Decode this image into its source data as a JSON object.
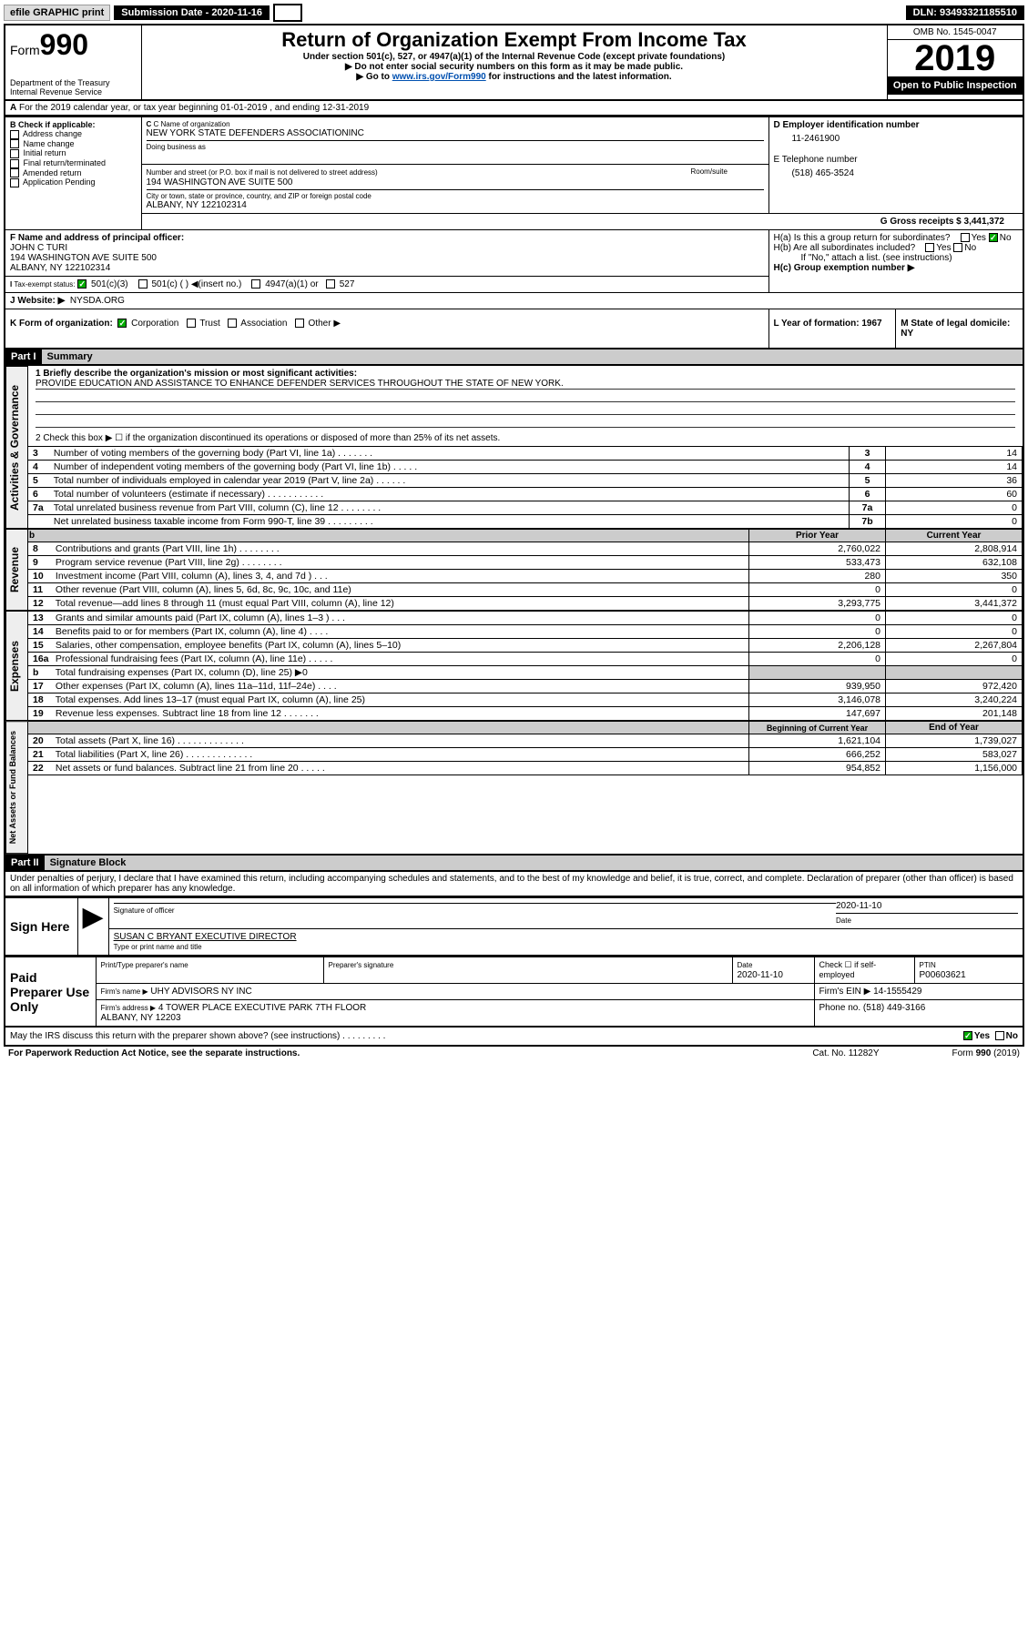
{
  "top": {
    "efile": "efile GRAPHIC print",
    "sub_date_label": "Submission Date - 2020-11-16",
    "dln": "DLN: 93493321185510"
  },
  "header": {
    "form_prefix": "Form",
    "form_number": "990",
    "dept": "Department of the Treasury Internal Revenue Service",
    "title": "Return of Organization Exempt From Income Tax",
    "subtitle": "Under section 501(c), 527, or 4947(a)(1) of the Internal Revenue Code (except private foundations)",
    "note1": "▶ Do not enter social security numbers on this form as it may be made public.",
    "note2_pre": "▶ Go to ",
    "note2_link": "www.irs.gov/Form990",
    "note2_post": " for instructions and the latest information.",
    "omb": "OMB No. 1545-0047",
    "year": "2019",
    "open": "Open to Public Inspection"
  },
  "a": {
    "line1": "For the 2019 calendar year, or tax year beginning 01-01-2019    , and ending 12-31-2019",
    "checks_label": "B Check if applicable:",
    "checks": [
      "Address change",
      "Name change",
      "Initial return",
      "Final return/terminated",
      "Amended return",
      "Application Pending"
    ],
    "c_name_label": "C Name of organization",
    "c_name": "NEW YORK STATE DEFENDERS ASSOCIATIONINC",
    "dba_label": "Doing business as",
    "addr_label": "Number and street (or P.O. box if mail is not delivered to street address)",
    "room_label": "Room/suite",
    "addr": "194 WASHINGTON AVE SUITE 500",
    "city_label": "City or town, state or province, country, and ZIP or foreign postal code",
    "city": "ALBANY, NY  122102314",
    "d_label": "D Employer identification number",
    "d_val": "11-2461900",
    "e_label": "E Telephone number",
    "e_val": "(518) 465-3524",
    "g_label": "G Gross receipts $ 3,441,372",
    "f_label": "F  Name and address of principal officer:",
    "f_name": "JOHN C TURI",
    "f_addr1": "194 WASHINGTON AVE SUITE 500",
    "f_addr2": "ALBANY, NY  122102314",
    "ha": "H(a)  Is this a group return for subordinates?",
    "hb": "H(b)  Are all subordinates included?",
    "hb_note": "If \"No,\" attach a list. (see instructions)",
    "hc": "H(c)  Group exemption number ▶",
    "yes": "Yes",
    "no": "No",
    "tax_label": "Tax-exempt status:",
    "tax_501c3": "501(c)(3)",
    "tax_501c": "501(c) (   ) ◀(insert no.)",
    "tax_4947": "4947(a)(1) or",
    "tax_527": "527",
    "j_label": "J Website: ▶",
    "j_val": "NYSDA.ORG",
    "k_label": "K Form of organization:",
    "k_opts": [
      "Corporation",
      "Trust",
      "Association",
      "Other ▶"
    ],
    "l_label": "L Year of formation: 1967",
    "m_label": "M State of legal domicile: NY"
  },
  "part1": {
    "header": "Part I",
    "sub": "Summary",
    "q1_label": "1  Briefly describe the organization's mission or most significant activities:",
    "q1_val": "PROVIDE EDUCATION AND ASSISTANCE TO ENHANCE DEFENDER SERVICES THROUGHOUT THE STATE OF NEW YORK.",
    "q2": "2  Check this box ▶ ☐  if the organization discontinued its operations or disposed of more than 25% of its net assets.",
    "rows_gov": [
      {
        "n": "3",
        "label": "Number of voting members of the governing body (Part VI, line 1a)   .    .    .    .    .    .    .",
        "box": "3",
        "val": "14"
      },
      {
        "n": "4",
        "label": "Number of independent voting members of the governing body (Part VI, line 1b)    .    .    .    .    .",
        "box": "4",
        "val": "14"
      },
      {
        "n": "5",
        "label": "Total number of individuals employed in calendar year 2019 (Part V, line 2a)    .    .    .    .    .    .",
        "box": "5",
        "val": "36"
      },
      {
        "n": "6",
        "label": "Total number of volunteers (estimate if necessary)    .    .    .    .    .    .    .    .    .    .    .",
        "box": "6",
        "val": "60"
      },
      {
        "n": "7a",
        "label": "Total unrelated business revenue from Part VIII, column (C), line 12    .    .    .    .    .    .    .    .",
        "box": "7a",
        "val": "0"
      },
      {
        "n": "",
        "label": "Net unrelated business taxable income from Form 990-T, line 39    .    .    .    .    .    .    .    .    .",
        "box": "7b",
        "val": "0"
      }
    ],
    "pyh": "Prior Year",
    "cyh": "Current Year",
    "rows_rev": [
      {
        "n": "8",
        "label": "Contributions and grants (Part VIII, line 1h)   .    .    .    .    .    .    .    .",
        "py": "2,760,022",
        "cy": "2,808,914"
      },
      {
        "n": "9",
        "label": "Program service revenue (Part VIII, line 2g)   .    .    .    .    .    .    .    .",
        "py": "533,473",
        "cy": "632,108"
      },
      {
        "n": "10",
        "label": "Investment income (Part VIII, column (A), lines 3, 4, and 7d )   .    .    .",
        "py": "280",
        "cy": "350"
      },
      {
        "n": "11",
        "label": "Other revenue (Part VIII, column (A), lines 5, 6d, 8c, 9c, 10c, and 11e)",
        "py": "0",
        "cy": "0"
      },
      {
        "n": "12",
        "label": "Total revenue—add lines 8 through 11 (must equal Part VIII, column (A), line 12)",
        "py": "3,293,775",
        "cy": "3,441,372"
      }
    ],
    "rows_exp": [
      {
        "n": "13",
        "label": "Grants and similar amounts paid (Part IX, column (A), lines 1–3 )   .    .    .",
        "py": "0",
        "cy": "0"
      },
      {
        "n": "14",
        "label": "Benefits paid to or for members (Part IX, column (A), line 4)   .    .    .    .",
        "py": "0",
        "cy": "0"
      },
      {
        "n": "15",
        "label": "Salaries, other compensation, employee benefits (Part IX, column (A), lines 5–10)",
        "py": "2,206,128",
        "cy": "2,267,804"
      },
      {
        "n": "16a",
        "label": "Professional fundraising fees (Part IX, column (A), line 11e)   .    .    .    .    .",
        "py": "0",
        "cy": "0"
      },
      {
        "n": "b",
        "label": "Total fundraising expenses (Part IX, column (D), line 25) ▶0",
        "py": "",
        "cy": ""
      },
      {
        "n": "17",
        "label": "Other expenses (Part IX, column (A), lines 11a–11d, 11f–24e)   .    .    .    .",
        "py": "939,950",
        "cy": "972,420"
      },
      {
        "n": "18",
        "label": "Total expenses. Add lines 13–17 (must equal Part IX, column (A), line 25)",
        "py": "3,146,078",
        "cy": "3,240,224"
      },
      {
        "n": "19",
        "label": "Revenue less expenses. Subtract line 18 from line 12   .    .    .    .    .    .    .",
        "py": "147,697",
        "cy": "201,148"
      }
    ],
    "bcy": "Beginning of Current Year",
    "eoy": "End of Year",
    "rows_net": [
      {
        "n": "20",
        "label": "Total assets (Part X, line 16)   .    .    .    .    .    .    .    .    .    .    .    .    .",
        "py": "1,621,104",
        "cy": "1,739,027"
      },
      {
        "n": "21",
        "label": "Total liabilities (Part X, line 26)   .    .    .    .    .    .    .    .    .    .    .    .    .",
        "py": "666,252",
        "cy": "583,027"
      },
      {
        "n": "22",
        "label": "Net assets or fund balances. Subtract line 21 from line 20   .    .    .    .    .",
        "py": "954,852",
        "cy": "1,156,000"
      }
    ]
  },
  "part2": {
    "header": "Part II",
    "sub": "Signature Block",
    "decl": "Under penalties of perjury, I declare that I have examined this return, including accompanying schedules and statements, and to the best of my knowledge and belief, it is true, correct, and complete. Declaration of preparer (other than officer) is based on all information of which preparer has any knowledge.",
    "sign_here": "Sign Here",
    "sig_officer": "Signature of officer",
    "sig_date": "2020-11-10",
    "sig_date_label": "Date",
    "officer_name": "SUSAN C BRYANT  EXECUTIVE DIRECTOR",
    "type_label": "Type or print name and title",
    "paid": "Paid Preparer Use Only",
    "prep_name_label": "Print/Type preparer's name",
    "prep_sig_label": "Preparer's signature",
    "prep_date_label": "Date",
    "prep_date": "2020-11-10",
    "check_if": "Check ☐ if self-employed",
    "ptin_label": "PTIN",
    "ptin": "P00603621",
    "firm_name_label": "Firm's name      ▶",
    "firm_name": "UHY ADVISORS NY INC",
    "firm_ein": "Firm's EIN ▶ 14-1555429",
    "firm_addr_label": "Firm's address ▶",
    "firm_addr": "4 TOWER PLACE EXECUTIVE PARK 7TH FLOOR\nALBANY, NY  12203",
    "phone": "Phone no. (518) 449-3166",
    "discuss": "May the IRS discuss this return with the preparer shown above? (see instructions)    .    .    .    .    .    .    .    .    .",
    "paperwork": "For Paperwork Reduction Act Notice, see the separate instructions.",
    "cat": "Cat. No. 11282Y",
    "form_footer": "Form 990 (2019)"
  }
}
